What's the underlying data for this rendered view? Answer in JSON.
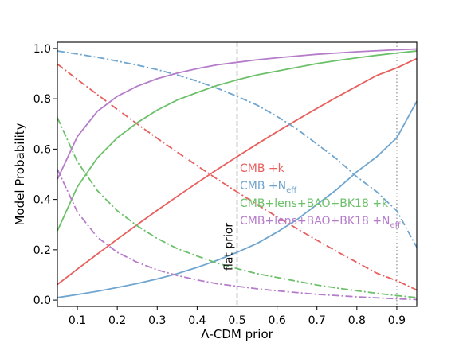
{
  "chart_data": {
    "type": "line",
    "xlabel": "Λ-CDM prior",
    "ylabel": "Model Probability",
    "xlim": [
      0.05,
      0.95
    ],
    "ylim": [
      -0.025,
      1.025
    ],
    "xticks": [
      0.1,
      0.2,
      0.3,
      0.4,
      0.5,
      0.6,
      0.7,
      0.8,
      0.9
    ],
    "xtick_labels": [
      "0.1",
      "0.2",
      "0.3",
      "0.4",
      "0.5",
      "0.6",
      "0.7",
      "0.8",
      "0.9"
    ],
    "yticks": [
      0.0,
      0.2,
      0.4,
      0.6,
      0.8,
      1.0
    ],
    "ytick_labels": [
      "0.0",
      "0.2",
      "0.4",
      "0.6",
      "0.8",
      "1.0"
    ],
    "grid": false,
    "legend_placement": "center-right",
    "x": [
      0.05,
      0.1,
      0.15,
      0.2,
      0.25,
      0.3,
      0.35,
      0.4,
      0.45,
      0.5,
      0.55,
      0.6,
      0.65,
      0.7,
      0.75,
      0.8,
      0.85,
      0.9,
      0.95
    ],
    "vlines": [
      {
        "x": 0.5,
        "style": "dashed",
        "color": "#aaaaaa",
        "label": "flat prior"
      },
      {
        "x": 0.9,
        "style": "dotted",
        "color": "#aaaaaa",
        "label": ""
      }
    ],
    "series": [
      {
        "name": "CMB +k",
        "color": "#e8605e",
        "style": "solid",
        "values": [
          0.062,
          0.123,
          0.183,
          0.242,
          0.3,
          0.357,
          0.412,
          0.466,
          0.519,
          0.57,
          0.62,
          0.669,
          0.716,
          0.762,
          0.807,
          0.85,
          0.893,
          0.923,
          0.96
        ]
      },
      {
        "name": "",
        "color": "#e8605e",
        "style": "dashdot",
        "values": [
          0.938,
          0.877,
          0.817,
          0.758,
          0.7,
          0.643,
          0.588,
          0.534,
          0.481,
          0.43,
          0.38,
          0.331,
          0.284,
          0.238,
          0.193,
          0.15,
          0.107,
          0.077,
          0.04
        ]
      },
      {
        "name": "CMB +N_eff",
        "color": "#6fa5cf",
        "style": "solid",
        "values": [
          0.01,
          0.022,
          0.035,
          0.05,
          0.066,
          0.084,
          0.105,
          0.13,
          0.158,
          0.19,
          0.225,
          0.27,
          0.32,
          0.38,
          0.44,
          0.51,
          0.57,
          0.645,
          0.79
        ]
      },
      {
        "name": "",
        "color": "#6fa5cf",
        "style": "dashdot",
        "values": [
          0.99,
          0.978,
          0.965,
          0.95,
          0.934,
          0.916,
          0.895,
          0.87,
          0.842,
          0.81,
          0.775,
          0.73,
          0.68,
          0.62,
          0.56,
          0.49,
          0.43,
          0.355,
          0.21
        ]
      },
      {
        "name": "CMB+lens+BAO+BK18 +k",
        "color": "#6cc06a",
        "style": "solid",
        "values": [
          0.275,
          0.45,
          0.565,
          0.645,
          0.705,
          0.755,
          0.795,
          0.825,
          0.853,
          0.875,
          0.895,
          0.91,
          0.925,
          0.94,
          0.952,
          0.963,
          0.973,
          0.982,
          0.99
        ]
      },
      {
        "name": "",
        "color": "#6cc06a",
        "style": "dashdot",
        "values": [
          0.725,
          0.55,
          0.435,
          0.355,
          0.295,
          0.245,
          0.205,
          0.175,
          0.147,
          0.125,
          0.105,
          0.09,
          0.075,
          0.06,
          0.048,
          0.037,
          0.027,
          0.018,
          0.01
        ]
      },
      {
        "name": "CMB+lens+BAO+BK18 +N_eff",
        "color": "#b57cca",
        "style": "solid",
        "values": [
          0.48,
          0.65,
          0.75,
          0.81,
          0.85,
          0.88,
          0.902,
          0.92,
          0.935,
          0.945,
          0.955,
          0.963,
          0.97,
          0.977,
          0.982,
          0.987,
          0.991,
          0.995,
          0.998
        ]
      },
      {
        "name": "",
        "color": "#b57cca",
        "style": "dashdot",
        "values": [
          0.52,
          0.35,
          0.25,
          0.19,
          0.15,
          0.12,
          0.098,
          0.08,
          0.065,
          0.055,
          0.045,
          0.037,
          0.03,
          0.023,
          0.018,
          0.013,
          0.009,
          0.005,
          0.002
        ]
      }
    ],
    "legend": [
      {
        "main": "CMB +k",
        "sub": "",
        "color": "#e8605e"
      },
      {
        "main": "CMB +N",
        "sub": "eff",
        "color": "#6fa5cf"
      },
      {
        "main": "CMB+lens+BAO+BK18 +k",
        "sub": "",
        "color": "#6cc06a"
      },
      {
        "main": "CMB+lens+BAO+BK18 +N",
        "sub": "eff",
        "color": "#b57cca"
      }
    ]
  }
}
